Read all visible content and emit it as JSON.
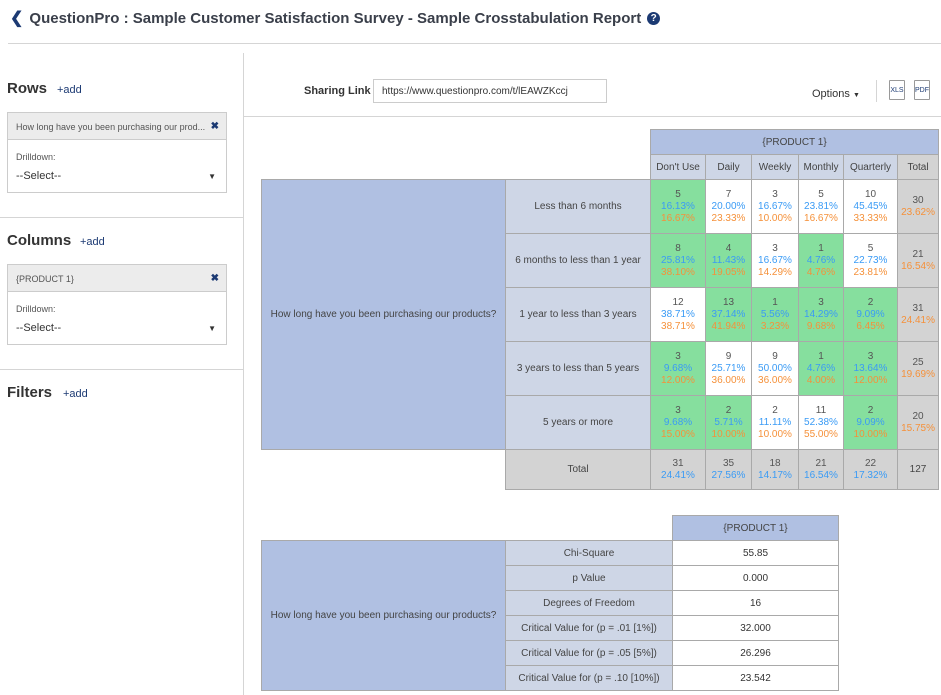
{
  "header": {
    "title": "QuestionPro : Sample Customer Satisfaction Survey - Sample Crosstabulation Report",
    "help_icon": "?"
  },
  "sidebar": {
    "rows": {
      "title": "Rows",
      "add": "+add",
      "item": "How long have you been purchasing our prod...",
      "drilldown_label": "Drilldown:",
      "drilldown_value": "--Select--"
    },
    "columns": {
      "title": "Columns",
      "add": "+add",
      "item": "{PRODUCT 1}",
      "drilldown_label": "Drilldown:",
      "drilldown_value": "--Select--"
    },
    "filters": {
      "title": "Filters",
      "add": "+add"
    }
  },
  "toolbar": {
    "sharing_label": "Sharing Link",
    "sharing_url": "https://www.questionpro.com/t/lEAWZKccj",
    "options": "Options",
    "xls": "XLS",
    "pdf": "PDF"
  },
  "colors": {
    "header": "#b0c0e2",
    "label": "#ced6e6",
    "significant": "#86df9e",
    "total": "#d3d3d3",
    "col_pct": "#3a9bf5",
    "row_pct": "#f5913a"
  },
  "crosstab": {
    "column_group": "{PRODUCT 1}",
    "row_question": "How long have you been purchasing our products?",
    "columns": [
      "Don't Use",
      "Daily",
      "Weekly",
      "Monthly",
      "Quarterly",
      "Total"
    ],
    "rows": [
      {
        "label": "Less than 6 months",
        "cells": [
          {
            "n": "5",
            "c": "16.13%",
            "r": "16.67%",
            "hl": true
          },
          {
            "n": "7",
            "c": "20.00%",
            "r": "23.33%",
            "hl": false
          },
          {
            "n": "3",
            "c": "16.67%",
            "r": "10.00%",
            "hl": false
          },
          {
            "n": "5",
            "c": "23.81%",
            "r": "16.67%",
            "hl": false
          },
          {
            "n": "10",
            "c": "45.45%",
            "r": "33.33%",
            "hl": false
          }
        ],
        "total": "30",
        "total_pct": "23.62%"
      },
      {
        "label": "6 months to less than 1 year",
        "cells": [
          {
            "n": "8",
            "c": "25.81%",
            "r": "38.10%",
            "hl": true
          },
          {
            "n": "4",
            "c": "11.43%",
            "r": "19.05%",
            "hl": true
          },
          {
            "n": "3",
            "c": "16.67%",
            "r": "14.29%",
            "hl": false
          },
          {
            "n": "1",
            "c": "4.76%",
            "r": "4.76%",
            "hl": true
          },
          {
            "n": "5",
            "c": "22.73%",
            "r": "23.81%",
            "hl": false
          }
        ],
        "total": "21",
        "total_pct": "16.54%"
      },
      {
        "label": "1 year to less than 3 years",
        "cells": [
          {
            "n": "12",
            "c": "38.71%",
            "r": "38.71%",
            "hl": false
          },
          {
            "n": "13",
            "c": "37.14%",
            "r": "41.94%",
            "hl": true
          },
          {
            "n": "1",
            "c": "5.56%",
            "r": "3.23%",
            "hl": true
          },
          {
            "n": "3",
            "c": "14.29%",
            "r": "9.68%",
            "hl": true
          },
          {
            "n": "2",
            "c": "9.09%",
            "r": "6.45%",
            "hl": true
          }
        ],
        "total": "31",
        "total_pct": "24.41%"
      },
      {
        "label": "3 years to less than 5 years",
        "cells": [
          {
            "n": "3",
            "c": "9.68%",
            "r": "12.00%",
            "hl": true
          },
          {
            "n": "9",
            "c": "25.71%",
            "r": "36.00%",
            "hl": false
          },
          {
            "n": "9",
            "c": "50.00%",
            "r": "36.00%",
            "hl": false
          },
          {
            "n": "1",
            "c": "4.76%",
            "r": "4.00%",
            "hl": true
          },
          {
            "n": "3",
            "c": "13.64%",
            "r": "12.00%",
            "hl": true
          }
        ],
        "total": "25",
        "total_pct": "19.69%"
      },
      {
        "label": "5 years or more",
        "cells": [
          {
            "n": "3",
            "c": "9.68%",
            "r": "15.00%",
            "hl": true
          },
          {
            "n": "2",
            "c": "5.71%",
            "r": "10.00%",
            "hl": true
          },
          {
            "n": "2",
            "c": "11.11%",
            "r": "10.00%",
            "hl": false
          },
          {
            "n": "11",
            "c": "52.38%",
            "r": "55.00%",
            "hl": false
          },
          {
            "n": "2",
            "c": "9.09%",
            "r": "10.00%",
            "hl": true
          }
        ],
        "total": "20",
        "total_pct": "15.75%"
      }
    ],
    "total_row": {
      "label": "Total",
      "cells": [
        {
          "n": "31",
          "c": "24.41%"
        },
        {
          "n": "35",
          "c": "27.56%"
        },
        {
          "n": "18",
          "c": "14.17%"
        },
        {
          "n": "21",
          "c": "16.54%"
        },
        {
          "n": "22",
          "c": "17.32%"
        }
      ],
      "grand_total": "127"
    }
  },
  "stats": {
    "column_group": "{PRODUCT 1}",
    "row_question": "How long have you been purchasing our products?",
    "rows": [
      {
        "label": "Chi-Square",
        "value": "55.85"
      },
      {
        "label": "p Value",
        "value": "0.000"
      },
      {
        "label": "Degrees of Freedom",
        "value": "16"
      },
      {
        "label": "Critical Value for (p = .01 [1%])",
        "value": "32.000"
      },
      {
        "label": "Critical Value for (p = .05 [5%])",
        "value": "26.296"
      },
      {
        "label": "Critical Value for (p = .10 [10%])",
        "value": "23.542"
      }
    ]
  }
}
